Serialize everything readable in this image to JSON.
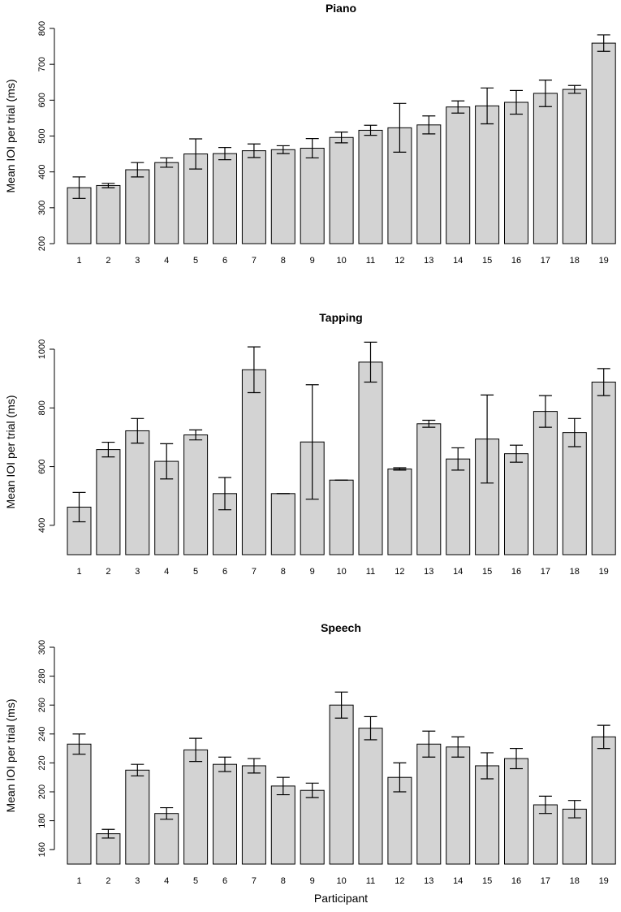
{
  "xlabel": "Participant",
  "colors": {
    "bar_fill": "#d3d3d3",
    "stroke": "#000000"
  },
  "chart_data": [
    {
      "type": "bar",
      "title": "Piano",
      "ylabel": "Mean IOI per trial (ms)",
      "ylim": [
        200,
        800
      ],
      "yticks": [
        200,
        300,
        400,
        500,
        600,
        700,
        800
      ],
      "categories": [
        "1",
        "2",
        "3",
        "4",
        "5",
        "6",
        "7",
        "8",
        "9",
        "10",
        "11",
        "12",
        "13",
        "14",
        "15",
        "16",
        "17",
        "18",
        "19"
      ],
      "values": [
        356,
        362,
        406,
        426,
        450,
        451,
        459,
        462,
        466,
        496,
        516,
        523,
        531,
        581,
        584,
        594,
        619,
        630,
        759
      ],
      "errors": [
        30,
        6,
        20,
        13,
        42,
        17,
        19,
        11,
        27,
        15,
        14,
        68,
        25,
        17,
        50,
        33,
        37,
        11,
        23
      ]
    },
    {
      "type": "bar",
      "title": "Tapping",
      "ylabel": "Mean IOI per trial (ms)",
      "ylim": [
        300,
        1000
      ],
      "yticks": [
        400,
        600,
        800,
        1000
      ],
      "categories": [
        "1",
        "2",
        "3",
        "4",
        "5",
        "6",
        "7",
        "8",
        "9",
        "10",
        "11",
        "12",
        "13",
        "14",
        "15",
        "16",
        "17",
        "18",
        "19"
      ],
      "values": [
        462,
        658,
        722,
        618,
        708,
        508,
        930,
        508,
        684,
        554,
        956,
        592,
        746,
        626,
        694,
        644,
        788,
        716,
        888
      ],
      "errors": [
        50,
        25,
        42,
        60,
        17,
        55,
        78,
        0,
        195,
        0,
        68,
        4,
        12,
        38,
        150,
        29,
        54,
        48,
        46
      ]
    },
    {
      "type": "bar",
      "title": "Speech",
      "ylabel": "Mean IOI per trial (ms)",
      "ylim": [
        150,
        300
      ],
      "yticks": [
        160,
        180,
        200,
        220,
        240,
        260,
        280,
        300
      ],
      "categories": [
        "1",
        "2",
        "3",
        "4",
        "5",
        "6",
        "7",
        "8",
        "9",
        "10",
        "11",
        "12",
        "13",
        "14",
        "15",
        "16",
        "17",
        "18",
        "19"
      ],
      "values": [
        233,
        171,
        215,
        185,
        229,
        219,
        218,
        204,
        201,
        260,
        244,
        210,
        233,
        231,
        218,
        223,
        191,
        188,
        238
      ],
      "errors": [
        7,
        3,
        4,
        4,
        8,
        5,
        5,
        6,
        5,
        9,
        8,
        10,
        9,
        7,
        9,
        7,
        6,
        6,
        8
      ]
    }
  ]
}
